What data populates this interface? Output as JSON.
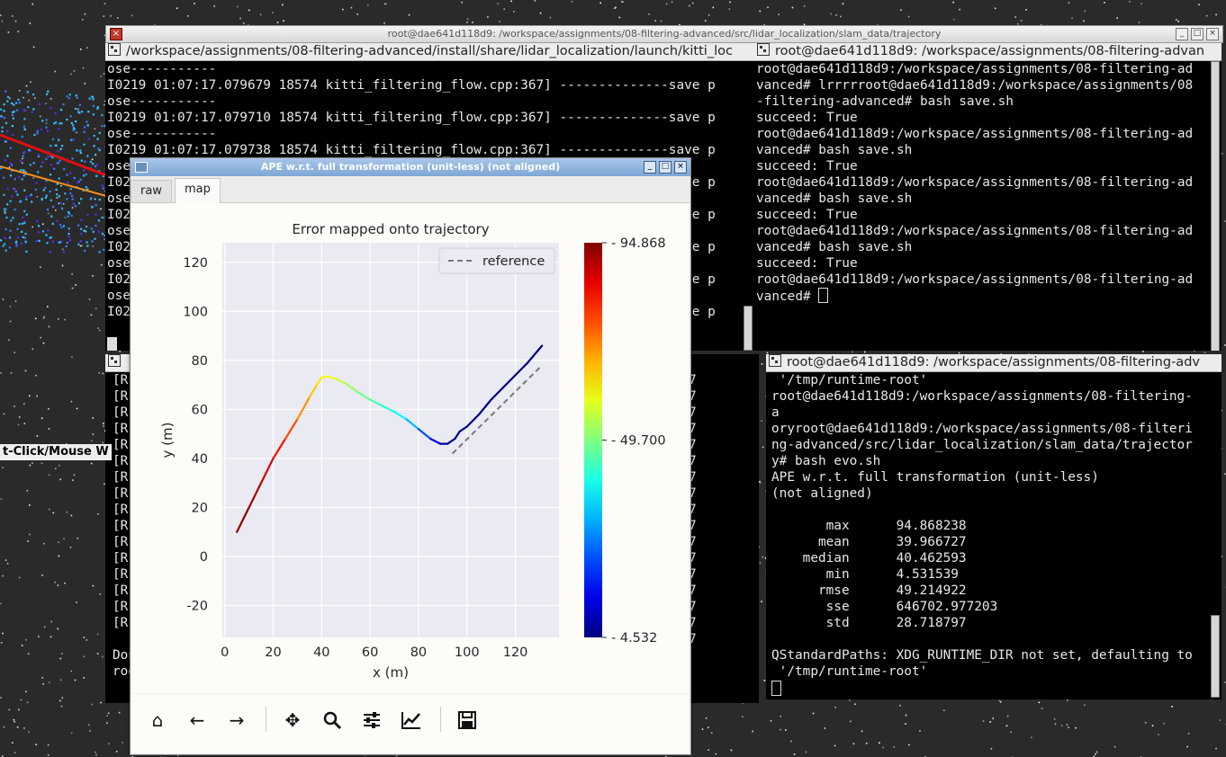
{
  "window_title": "root@dae641d118d9: /workspace/assignments/08-filtering-advanced/src/lidar_localization/slam_data/trajectory",
  "left_overlay_text": "t-Click/Mouse W",
  "term_top_left": {
    "title": "/workspace/assignments/08-filtering-advanced/install/share/lidar_localization/launch/kitti_loc",
    "lines": [
      "ose-----------",
      "I0219 01:07:17.079679 18574 kitti_filtering_flow.cpp:367] --------------save p",
      "ose-----------",
      "I0219 01:07:17.079710 18574 kitti_filtering_flow.cpp:367] --------------save p",
      "ose-----------",
      "I0219 01:07:17.079738 18574 kitti_filtering_flow.cpp:367] --------------save p",
      "ose-----------",
      "I02                                                       --------------save p",
      "ose                                                                           ",
      "I02                                                       --------------save p",
      "ose                                                                           ",
      "I02                                                       --------------save p",
      "ose                                                                           ",
      "I02                                                       --------------save p",
      "ose                                                                           ",
      "I02                                                       --------------save p"
    ]
  },
  "term_top_right": {
    "title": "root@dae641d118d9: /workspace/assignments/08-filtering-advan",
    "lines": [
      "root@dae641d118d9:/workspace/assignments/08-filtering-ad",
      "vanced# lrrrrroot@dae641d118d9:/workspace/assignments/08",
      "-filtering-advanced# bash save.sh",
      "succeed: True",
      "root@dae641d118d9:/workspace/assignments/08-filtering-ad",
      "vanced# bash save.sh",
      "succeed: True",
      "root@dae641d118d9:/workspace/assignments/08-filtering-ad",
      "vanced# bash save.sh",
      "succeed: True",
      "root@dae641d118d9:/workspace/assignments/08-filtering-ad",
      "vanced# bash save.sh",
      "succeed: True",
      "root@dae641d118d9:/workspace/assignments/08-filtering-ad",
      "vanced# "
    ]
  },
  "term_bottom_left": {
    "lines": [
      "[R",
      "[R",
      "[R",
      "[R",
      "[R",
      "[R",
      "[R",
      "[R",
      "[R",
      "[R",
      "[R",
      "[R",
      "[R",
      "[R",
      "[R",
      "[R",
      "",
      "Don",
      "roo"
    ],
    "right_col": [
      "7",
      "7",
      "7",
      "7",
      "7",
      "7",
      "7",
      "7",
      "7",
      "7",
      "7",
      "7",
      "7",
      "7",
      "7",
      "7",
      "7"
    ]
  },
  "term_bottom_right": {
    "title": "root@dae641d118d9: /workspace/assignments/08-filtering-adv",
    "lines": [
      " '/tmp/runtime-root'",
      "root@dae641d118d9:/workspace/assignments/08-filtering-",
      "a",
      "oryroot@dae641d118d9:/workspace/assignments/08-filteri",
      "ng-advanced/src/lidar_localization/slam_data/trajector",
      "y# bash evo.sh",
      "APE w.r.t. full transformation (unit-less)",
      "(not aligned)",
      "",
      "       max      94.868238",
      "      mean      39.966727",
      "    median      40.462593",
      "       min      4.531539",
      "      rmse      49.214922",
      "       sse      646702.977203",
      "       std      28.718797",
      "",
      "QStandardPaths: XDG_RUNTIME_DIR not set, defaulting to",
      " '/tmp/runtime-root'"
    ]
  },
  "plot_window": {
    "title": "APE w.r.t. full transformation (unit-less) (not aligned)",
    "tabs": [
      "raw",
      "map"
    ],
    "active_tab": "map",
    "toolbar": [
      "home-icon",
      "back-icon",
      "forward-icon",
      "pan-icon",
      "zoom-icon",
      "configure-icon",
      "edit-axis-icon",
      "save-icon"
    ]
  },
  "chart_data": {
    "type": "line",
    "title": "Error mapped onto trajectory",
    "xlabel": "x (m)",
    "ylabel": "y (m)",
    "xlim": [
      -1,
      138
    ],
    "ylim": [
      -33,
      128
    ],
    "xticks": [
      0,
      20,
      40,
      60,
      80,
      100,
      120
    ],
    "yticks": [
      -20,
      0,
      20,
      40,
      60,
      80,
      100,
      120
    ],
    "grid": true,
    "legend": {
      "position": "top-right",
      "entries": [
        "reference"
      ]
    },
    "colorbar": {
      "min": 4.532,
      "mid": 49.7,
      "max": 94.868,
      "labels": [
        "94.868",
        "49.700",
        "4.532"
      ],
      "colormap": "jet"
    },
    "series": [
      {
        "name": "reference",
        "style": "dashed",
        "color": "#777777",
        "x": [
          94,
          131
        ],
        "y": [
          42,
          78
        ]
      },
      {
        "name": "",
        "style": "colormapped",
        "points": [
          [
            5,
            10,
            94.8
          ],
          [
            10,
            20,
            93
          ],
          [
            15,
            30,
            90
          ],
          [
            20,
            40,
            85
          ],
          [
            25,
            48,
            80
          ],
          [
            30,
            56,
            74
          ],
          [
            35,
            65,
            68
          ],
          [
            38,
            70,
            64
          ],
          [
            40,
            73,
            62
          ],
          [
            42,
            73.5,
            60
          ],
          [
            46,
            72.5,
            58
          ],
          [
            50,
            70.5,
            55
          ],
          [
            55,
            67,
            50
          ],
          [
            60,
            64,
            46
          ],
          [
            65,
            61.5,
            43
          ],
          [
            70,
            59,
            40
          ],
          [
            75,
            56,
            36
          ],
          [
            80,
            52,
            28
          ],
          [
            85,
            48,
            18
          ],
          [
            89,
            46,
            10
          ],
          [
            92,
            46,
            7
          ],
          [
            95,
            48,
            6
          ],
          [
            97,
            51,
            6
          ],
          [
            100,
            53,
            6
          ],
          [
            105,
            58,
            5.5
          ],
          [
            110,
            64,
            5
          ],
          [
            115,
            69,
            5
          ],
          [
            120,
            74,
            4.8
          ],
          [
            125,
            79,
            4.7
          ],
          [
            131,
            86,
            4.6
          ]
        ]
      }
    ]
  }
}
